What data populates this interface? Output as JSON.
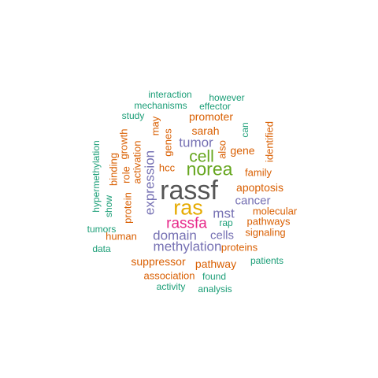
{
  "palette": {
    "gray": "#555555",
    "orange": "#d95f02",
    "green": "#1b9e77",
    "purple": "#7570b3",
    "magenta": "#e7298a",
    "lime": "#66a61e",
    "gold": "#e6ab02"
  },
  "words": [
    {
      "text": "rassf",
      "color": "gray"
    },
    {
      "text": "ras",
      "color": "gold"
    },
    {
      "text": "norea",
      "color": "lime"
    },
    {
      "text": "cell",
      "color": "lime"
    },
    {
      "text": "rassfa",
      "color": "magenta"
    },
    {
      "text": "methylation",
      "color": "purple"
    },
    {
      "text": "domain",
      "color": "purple"
    },
    {
      "text": "expression",
      "color": "purple"
    },
    {
      "text": "tumor",
      "color": "purple"
    },
    {
      "text": "mst",
      "color": "purple"
    },
    {
      "text": "cancer",
      "color": "purple"
    },
    {
      "text": "cells",
      "color": "purple"
    },
    {
      "text": "apoptosis",
      "color": "orange"
    },
    {
      "text": "gene",
      "color": "orange"
    },
    {
      "text": "family",
      "color": "orange"
    },
    {
      "text": "promoter",
      "color": "orange"
    },
    {
      "text": "sarah",
      "color": "orange"
    },
    {
      "text": "suppressor",
      "color": "orange"
    },
    {
      "text": "pathway",
      "color": "orange"
    },
    {
      "text": "proteins",
      "color": "orange"
    },
    {
      "text": "signaling",
      "color": "orange"
    },
    {
      "text": "pathways",
      "color": "orange"
    },
    {
      "text": "molecular",
      "color": "orange"
    },
    {
      "text": "association",
      "color": "orange"
    },
    {
      "text": "human",
      "color": "orange"
    },
    {
      "text": "hcc",
      "color": "orange"
    },
    {
      "text": "genes",
      "color": "orange"
    },
    {
      "text": "may",
      "color": "orange"
    },
    {
      "text": "activation",
      "color": "orange"
    },
    {
      "text": "role",
      "color": "orange"
    },
    {
      "text": "growth",
      "color": "orange"
    },
    {
      "text": "protein",
      "color": "orange"
    },
    {
      "text": "binding",
      "color": "orange"
    },
    {
      "text": "identified",
      "color": "orange"
    },
    {
      "text": "also",
      "color": "orange"
    },
    {
      "text": "interaction",
      "color": "green"
    },
    {
      "text": "however",
      "color": "green"
    },
    {
      "text": "mechanisms",
      "color": "green"
    },
    {
      "text": "effector",
      "color": "green"
    },
    {
      "text": "study",
      "color": "green"
    },
    {
      "text": "can",
      "color": "green"
    },
    {
      "text": "rap",
      "color": "green"
    },
    {
      "text": "found",
      "color": "green"
    },
    {
      "text": "patients",
      "color": "green"
    },
    {
      "text": "activity",
      "color": "green"
    },
    {
      "text": "analysis",
      "color": "green"
    },
    {
      "text": "tumors",
      "color": "green"
    },
    {
      "text": "data",
      "color": "green"
    },
    {
      "text": "show",
      "color": "green"
    },
    {
      "text": "hypermethylation",
      "color": "green"
    }
  ]
}
